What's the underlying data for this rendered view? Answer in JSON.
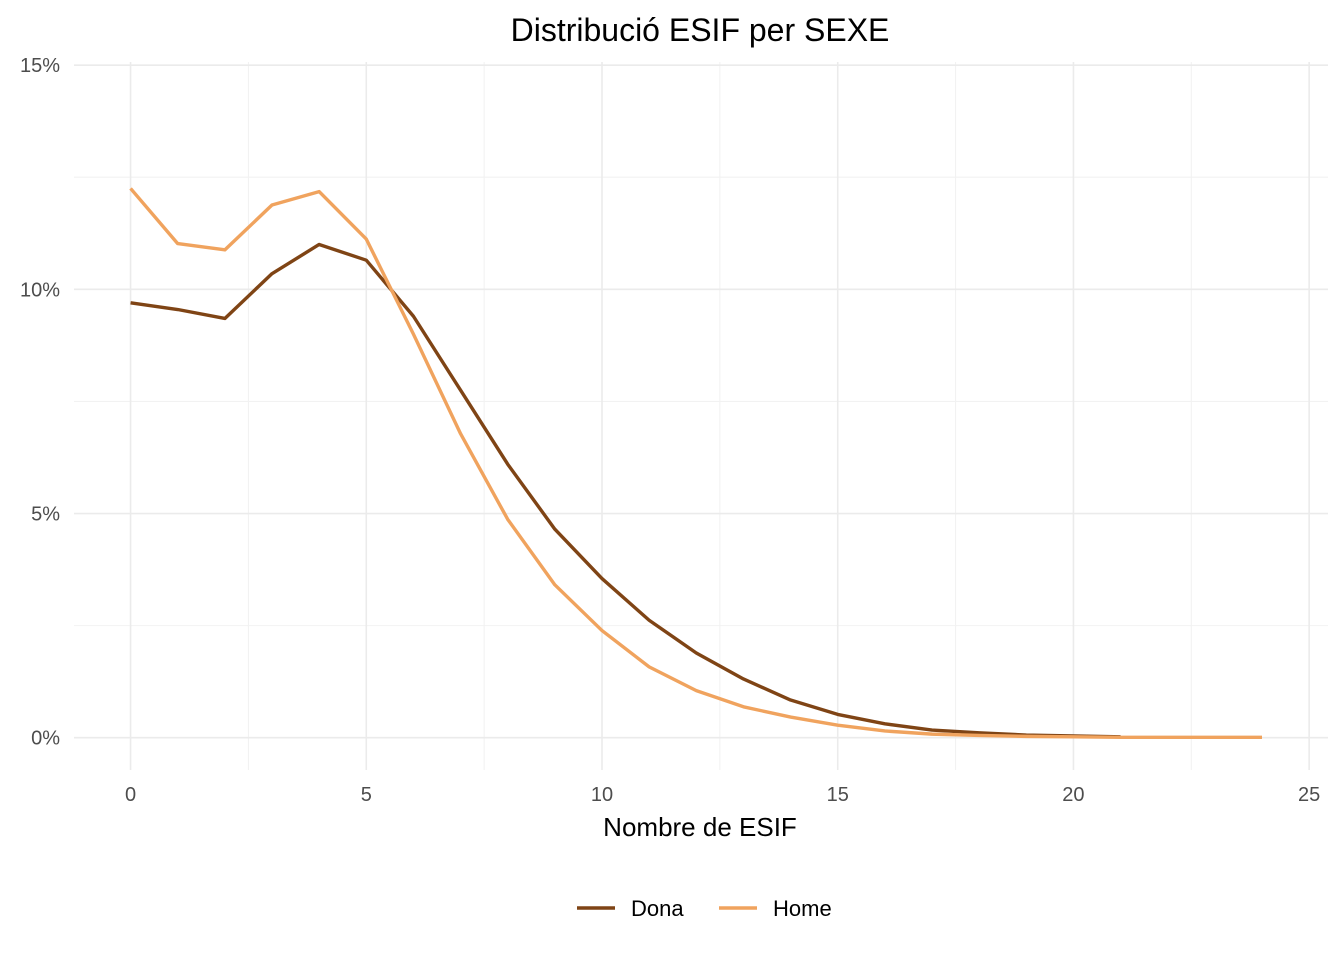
{
  "chart_data": {
    "type": "line",
    "title": "Distribució ESIF per SEXE",
    "xlabel": "Nombre de ESIF",
    "ylabel": "",
    "xlim": [
      -1.2,
      25.4
    ],
    "ylim": [
      -0.0072,
      0.1507
    ],
    "x_ticks": [
      0,
      5,
      10,
      15,
      20,
      25
    ],
    "x_tick_labels": [
      "0",
      "5",
      "10",
      "15",
      "20",
      "25"
    ],
    "y_ticks": [
      0,
      0.05,
      0.1,
      0.15
    ],
    "y_tick_labels": [
      "0%",
      "5%",
      "10%",
      "15%"
    ],
    "grid": true,
    "legend_position": "bottom",
    "series": [
      {
        "name": "Dona",
        "color": "#7f4415",
        "x": [
          0,
          1,
          2,
          3,
          4,
          5,
          6,
          7,
          8,
          9,
          10,
          11,
          12,
          13,
          14,
          15,
          16,
          17,
          18,
          19,
          20,
          21
        ],
        "values": [
          0.097,
          0.0955,
          0.0935,
          0.1035,
          0.11,
          0.1065,
          0.094,
          0.0775,
          0.061,
          0.0465,
          0.0355,
          0.0262,
          0.0189,
          0.0131,
          0.0084,
          0.0052,
          0.0031,
          0.0017,
          0.0011,
          0.0006,
          0.0004,
          0.0002
        ]
      },
      {
        "name": "Home",
        "color": "#f0a35e",
        "x": [
          0,
          1,
          2,
          3,
          4,
          5,
          6,
          7,
          8,
          9,
          10,
          11,
          12,
          13,
          14,
          15,
          16,
          17,
          18,
          19,
          20,
          21,
          22,
          23,
          24
        ],
        "values": [
          0.1225,
          0.1102,
          0.1088,
          0.1188,
          0.1218,
          0.1112,
          0.09,
          0.0678,
          0.0487,
          0.0341,
          0.0239,
          0.0158,
          0.0105,
          0.0069,
          0.0046,
          0.0028,
          0.0015,
          0.0008,
          0.0005,
          0.0003,
          0.0002,
          0.0001,
          0.0001,
          0.0001,
          0.0001
        ]
      }
    ]
  }
}
